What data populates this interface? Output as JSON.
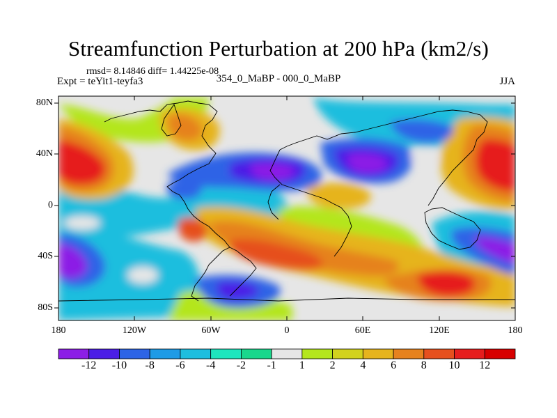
{
  "title": "Streamfunction Perturbation at 200 hPa (km2/s)",
  "stats": "rmsd= 8.14846 diff= 1.44225e-08",
  "expt": "Expt = teYit1-teyfa3",
  "diff_label": "354_0_MaBP - 000_0_MaBP",
  "season": "JJA",
  "lat_ticks": [
    "80N",
    "40N",
    "0",
    "40S",
    "80S"
  ],
  "lon_ticks": [
    "180",
    "120W",
    "60W",
    "0",
    "60E",
    "120E",
    "180"
  ],
  "colorbar": {
    "labels": [
      "-12",
      "-10",
      "-8",
      "-6",
      "-4",
      "-2",
      "-1",
      "1",
      "2",
      "4",
      "6",
      "8",
      "10",
      "12"
    ],
    "colors": [
      "#8c1ee6",
      "#4b1ee6",
      "#2d64e6",
      "#1e9be6",
      "#1ebede",
      "#1ee6be",
      "#19d78c",
      "#e6e6e6",
      "#b4e61e",
      "#d2d21e",
      "#e6b41e",
      "#e6821e",
      "#e6501e",
      "#e61e1e",
      "#d70000"
    ]
  }
}
